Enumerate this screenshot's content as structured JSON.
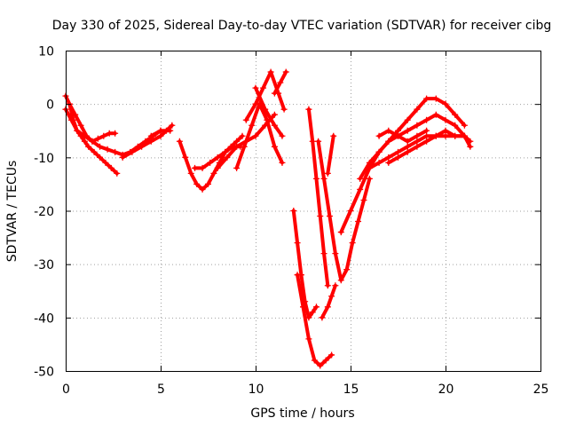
{
  "chart_data": {
    "type": "scatter",
    "title": "Day 330 of 2025, Sidereal Day-to-day VTEC variation (SDTVAR) for receiver cibg",
    "xlabel": "GPS time / hours",
    "ylabel": "SDTVAR / TECUs",
    "xlim": [
      0,
      25
    ],
    "ylim": [
      -50,
      10
    ],
    "xticks": [
      0,
      5,
      10,
      15,
      20,
      25
    ],
    "yticks": [
      -50,
      -40,
      -30,
      -20,
      -10,
      0,
      10
    ],
    "grid": true,
    "marker_style": "plus",
    "color": "#ff0000",
    "series": [
      {
        "name": "s1",
        "x": [
          0.0,
          0.2,
          0.4,
          0.6,
          0.8,
          1.0,
          1.2,
          1.5,
          1.8,
          2.1,
          2.4,
          2.7
        ],
        "y": [
          1.5,
          0,
          -3,
          -5,
          -6,
          -7,
          -8,
          -9,
          -10,
          -11,
          -12,
          -13
        ]
      },
      {
        "name": "s2",
        "x": [
          0.0,
          0.3,
          0.6,
          1.0,
          1.4,
          1.8,
          2.2,
          2.6,
          3.0,
          3.4,
          3.8,
          4.2,
          4.6,
          5.0
        ],
        "y": [
          -1,
          -3,
          -5,
          -6,
          -7,
          -8,
          -8.5,
          -9,
          -9.5,
          -9,
          -8,
          -7,
          -6,
          -5
        ]
      },
      {
        "name": "s3",
        "x": [
          0.2,
          0.5,
          0.8,
          1.1,
          1.4,
          1.7,
          2.0,
          2.3,
          2.6
        ],
        "y": [
          0,
          -2,
          -4,
          -6,
          -7,
          -6.5,
          -6,
          -5.5,
          -5.5
        ]
      },
      {
        "name": "s4",
        "x": [
          3.0,
          3.5,
          4.0,
          4.5,
          5.0,
          5.3,
          5.6
        ],
        "y": [
          -10,
          -9,
          -8,
          -7,
          -6,
          -5,
          -4
        ]
      },
      {
        "name": "s5",
        "x": [
          4.5,
          5.0,
          5.5
        ],
        "y": [
          -6,
          -5,
          -5
        ]
      },
      {
        "name": "s6",
        "x": [
          6.0,
          6.3,
          6.6,
          6.9,
          7.2,
          7.5,
          7.8,
          8.1,
          8.4,
          8.7,
          9.0,
          9.3
        ],
        "y": [
          -7,
          -10,
          -13,
          -15,
          -16,
          -15,
          -13,
          -11,
          -9,
          -8,
          -7,
          -6
        ]
      },
      {
        "name": "s7",
        "x": [
          6.8,
          7.2,
          7.6,
          8.0,
          8.4,
          8.8,
          9.2
        ],
        "y": [
          -12,
          -12,
          -11,
          -10,
          -9,
          -8,
          -8
        ]
      },
      {
        "name": "s8",
        "x": [
          8.0,
          8.5,
          9.0,
          9.5,
          10.0,
          10.5,
          11.0
        ],
        "y": [
          -12,
          -10,
          -8,
          -7,
          -6,
          -4,
          -2
        ]
      },
      {
        "name": "s9",
        "x": [
          9.0,
          9.4,
          9.8,
          10.2,
          10.6,
          11.0,
          11.4
        ],
        "y": [
          -12,
          -8,
          -4,
          0,
          -3,
          -8,
          -11
        ]
      },
      {
        "name": "s10",
        "x": [
          9.5,
          10.0,
          10.4,
          10.8,
          11.2,
          11.5
        ],
        "y": [
          -3,
          0,
          3,
          6,
          2,
          -1
        ]
      },
      {
        "name": "s11",
        "x": [
          10.0,
          10.5,
          11.0,
          11.4
        ],
        "y": [
          3,
          -1,
          -4,
          -6
        ]
      },
      {
        "name": "s12",
        "x": [
          11.0,
          11.3,
          11.6
        ],
        "y": [
          2,
          4,
          6
        ]
      },
      {
        "name": "s13",
        "x": [
          12.0,
          12.2,
          12.4,
          12.6,
          12.8,
          13.0,
          13.2
        ],
        "y": [
          -20,
          -26,
          -32,
          -37,
          -40,
          -39,
          -38
        ]
      },
      {
        "name": "s14",
        "x": [
          12.2,
          12.5,
          12.8,
          13.1,
          13.4,
          13.7,
          14.0
        ],
        "y": [
          -32,
          -38,
          -44,
          -48,
          -49,
          -48,
          -47
        ]
      },
      {
        "name": "s15",
        "x": [
          12.8,
          13.0,
          13.2,
          13.4,
          13.6,
          13.8
        ],
        "y": [
          -1,
          -7,
          -14,
          -21,
          -28,
          -34
        ]
      },
      {
        "name": "s16",
        "x": [
          13.3,
          13.6,
          13.9,
          14.2,
          14.5,
          14.8,
          15.1,
          15.4,
          15.7,
          16.0
        ],
        "y": [
          -7,
          -14,
          -21,
          -28,
          -33,
          -31,
          -26,
          -22,
          -18,
          -14
        ]
      },
      {
        "name": "s17",
        "x": [
          13.5,
          13.8,
          14.0,
          14.2
        ],
        "y": [
          -40,
          -38,
          -36,
          -34
        ]
      },
      {
        "name": "s18",
        "x": [
          13.8,
          14.1
        ],
        "y": [
          -13,
          -6
        ]
      },
      {
        "name": "s19",
        "x": [
          14.5,
          15.0,
          15.5,
          16.0,
          16.5,
          17.0,
          17.5,
          18.0,
          18.5,
          19.0,
          19.5,
          20.0,
          20.5,
          21.0,
          21.3
        ],
        "y": [
          -24,
          -20,
          -16,
          -12,
          -9,
          -7,
          -6,
          -5,
          -4,
          -3,
          -2,
          -3,
          -4,
          -6,
          -8
        ]
      },
      {
        "name": "s20",
        "x": [
          15.5,
          16.0,
          16.5,
          17.0,
          17.5,
          18.0,
          18.5,
          19.0,
          19.5,
          20.0,
          20.5,
          21.0
        ],
        "y": [
          -14,
          -11,
          -9,
          -7,
          -5,
          -3,
          -1,
          1,
          1,
          0,
          -2,
          -4
        ]
      },
      {
        "name": "s21",
        "x": [
          16.0,
          16.5,
          17.0,
          17.5,
          18.0,
          18.5,
          19.0,
          19.5,
          20.0,
          20.5,
          21.0,
          21.3
        ],
        "y": [
          -12,
          -11,
          -10,
          -9,
          -8,
          -7,
          -6,
          -6,
          -5,
          -6,
          -6,
          -7
        ]
      },
      {
        "name": "s22",
        "x": [
          16.5,
          17.0,
          17.5,
          18.0,
          18.5,
          19.0
        ],
        "y": [
          -6,
          -5,
          -6,
          -7,
          -6,
          -5
        ]
      },
      {
        "name": "s23",
        "x": [
          17.0,
          17.5,
          18.0,
          18.5,
          19.0,
          19.5,
          20.0,
          20.5,
          21.0
        ],
        "y": [
          -11,
          -10,
          -9,
          -8,
          -7,
          -6,
          -6,
          -6,
          -6
        ]
      }
    ]
  }
}
